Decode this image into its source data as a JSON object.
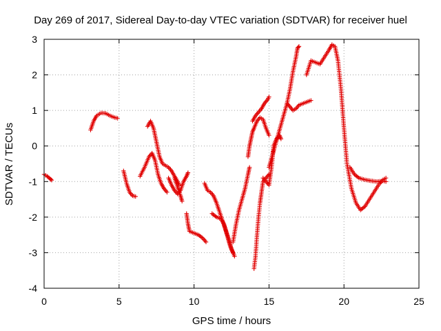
{
  "chart_data": {
    "type": "scatter",
    "title": "Day 269 of 2017, Sidereal Day-to-day VTEC variation (SDTVAR) for receiver huel",
    "xlabel": "GPS time / hours",
    "ylabel": "SDTVAR / TECUs",
    "xlim": [
      0,
      25
    ],
    "ylim": [
      -4,
      3
    ],
    "xticks": [
      0,
      5,
      10,
      15,
      20,
      25
    ],
    "yticks": [
      -4,
      -3,
      -2,
      -1,
      0,
      1,
      2,
      3
    ],
    "grid": true,
    "marker": "+",
    "color": "#e00000",
    "segments": [
      [
        [
          0.0,
          -0.8
        ],
        [
          0.2,
          -0.85
        ],
        [
          0.4,
          -0.92
        ],
        [
          0.5,
          -0.96
        ]
      ],
      [
        [
          3.1,
          0.45
        ],
        [
          3.3,
          0.7
        ],
        [
          3.5,
          0.85
        ],
        [
          3.8,
          0.93
        ],
        [
          4.1,
          0.92
        ],
        [
          4.4,
          0.85
        ],
        [
          4.7,
          0.8
        ],
        [
          4.9,
          0.78
        ]
      ],
      [
        [
          5.3,
          -0.7
        ],
        [
          5.5,
          -1.05
        ],
        [
          5.7,
          -1.3
        ],
        [
          5.9,
          -1.4
        ],
        [
          6.1,
          -1.42
        ]
      ],
      [
        [
          6.4,
          -0.85
        ],
        [
          6.7,
          -0.6
        ],
        [
          7.0,
          -0.3
        ],
        [
          7.2,
          -0.2
        ],
        [
          7.4,
          -0.4
        ],
        [
          7.6,
          -0.8
        ],
        [
          7.8,
          -1.05
        ],
        [
          8.0,
          -1.2
        ],
        [
          8.2,
          -1.3
        ]
      ],
      [
        [
          6.9,
          0.55
        ],
        [
          7.1,
          0.7
        ],
        [
          7.3,
          0.5
        ],
        [
          7.5,
          0.1
        ],
        [
          7.7,
          -0.3
        ],
        [
          7.9,
          -0.5
        ],
        [
          8.1,
          -0.55
        ],
        [
          8.3,
          -0.6
        ],
        [
          8.5,
          -0.7
        ],
        [
          8.7,
          -0.85
        ],
        [
          8.9,
          -1.0
        ],
        [
          9.0,
          -1.1
        ]
      ],
      [
        [
          8.3,
          -0.9
        ],
        [
          8.5,
          -1.1
        ],
        [
          8.7,
          -1.25
        ],
        [
          8.9,
          -1.35
        ],
        [
          9.1,
          -1.25
        ],
        [
          9.3,
          -1.0
        ],
        [
          9.5,
          -0.85
        ],
        [
          9.6,
          -0.75
        ]
      ],
      [
        [
          8.7,
          -0.9
        ],
        [
          8.9,
          -1.15
        ],
        [
          9.1,
          -1.4
        ],
        [
          9.2,
          -1.55
        ]
      ],
      [
        [
          9.5,
          -1.9
        ],
        [
          9.6,
          -2.2
        ],
        [
          9.7,
          -2.4
        ],
        [
          10.0,
          -2.45
        ],
        [
          10.3,
          -2.5
        ],
        [
          10.6,
          -2.6
        ],
        [
          10.8,
          -2.7
        ]
      ],
      [
        [
          10.7,
          -1.05
        ],
        [
          10.9,
          -1.25
        ],
        [
          11.1,
          -1.3
        ],
        [
          11.3,
          -1.4
        ],
        [
          11.5,
          -1.6
        ],
        [
          11.7,
          -1.85
        ],
        [
          11.9,
          -2.1
        ],
        [
          12.1,
          -2.35
        ],
        [
          12.3,
          -2.6
        ],
        [
          12.5,
          -2.9
        ],
        [
          12.7,
          -3.1
        ]
      ],
      [
        [
          11.2,
          -1.9
        ],
        [
          11.5,
          -2.0
        ],
        [
          11.8,
          -2.05
        ],
        [
          12.0,
          -2.2
        ],
        [
          12.2,
          -2.5
        ],
        [
          12.4,
          -2.8
        ],
        [
          12.6,
          -3.0
        ]
      ],
      [
        [
          12.6,
          -2.7
        ],
        [
          12.8,
          -2.2
        ],
        [
          13.0,
          -1.8
        ],
        [
          13.2,
          -1.5
        ],
        [
          13.4,
          -1.2
        ],
        [
          13.6,
          -0.8
        ],
        [
          13.7,
          -0.6
        ]
      ],
      [
        [
          13.6,
          -0.3
        ],
        [
          13.7,
          0.0
        ],
        [
          13.8,
          0.2
        ],
        [
          13.9,
          0.4
        ],
        [
          14.0,
          0.5
        ],
        [
          14.2,
          0.7
        ],
        [
          14.4,
          0.8
        ],
        [
          14.6,
          0.75
        ],
        [
          14.8,
          0.5
        ],
        [
          15.0,
          0.3
        ]
      ],
      [
        [
          13.9,
          0.7
        ],
        [
          14.1,
          0.85
        ],
        [
          14.3,
          0.95
        ],
        [
          14.5,
          1.05
        ],
        [
          14.7,
          1.2
        ],
        [
          14.9,
          1.3
        ],
        [
          15.0,
          1.38
        ]
      ],
      [
        [
          14.0,
          -3.45
        ],
        [
          14.1,
          -3.1
        ],
        [
          14.2,
          -2.5
        ],
        [
          14.3,
          -2.0
        ],
        [
          14.4,
          -1.6
        ],
        [
          14.5,
          -1.3
        ],
        [
          14.6,
          -1.0
        ],
        [
          14.8,
          -0.9
        ],
        [
          15.0,
          -0.8
        ]
      ],
      [
        [
          14.6,
          -0.9
        ],
        [
          14.8,
          -1.0
        ],
        [
          15.0,
          -1.1
        ],
        [
          15.2,
          -0.5
        ],
        [
          15.3,
          0.0
        ],
        [
          15.5,
          0.2
        ],
        [
          15.7,
          0.3
        ],
        [
          15.8,
          0.2
        ]
      ],
      [
        [
          15.0,
          -0.6
        ],
        [
          15.2,
          -0.3
        ],
        [
          15.4,
          0.0
        ],
        [
          15.6,
          0.3
        ],
        [
          15.8,
          0.6
        ],
        [
          16.0,
          0.9
        ],
        [
          16.2,
          1.2
        ],
        [
          16.4,
          1.6
        ],
        [
          16.6,
          2.1
        ],
        [
          16.8,
          2.5
        ],
        [
          16.9,
          2.75
        ],
        [
          17.0,
          2.8
        ]
      ],
      [
        [
          16.2,
          1.2
        ],
        [
          16.4,
          1.1
        ],
        [
          16.6,
          1.0
        ],
        [
          16.8,
          1.05
        ],
        [
          17.0,
          1.15
        ],
        [
          17.3,
          1.2
        ],
        [
          17.6,
          1.25
        ],
        [
          17.8,
          1.28
        ]
      ],
      [
        [
          17.5,
          2.0
        ],
        [
          17.8,
          2.4
        ],
        [
          18.1,
          2.35
        ],
        [
          18.4,
          2.3
        ],
        [
          18.7,
          2.5
        ],
        [
          19.0,
          2.7
        ],
        [
          19.2,
          2.85
        ],
        [
          19.4,
          2.8
        ],
        [
          19.6,
          2.4
        ],
        [
          19.8,
          1.6
        ],
        [
          20.0,
          0.5
        ],
        [
          20.2,
          -0.5
        ],
        [
          20.5,
          -1.2
        ],
        [
          20.8,
          -1.6
        ],
        [
          21.1,
          -1.8
        ],
        [
          21.4,
          -1.7
        ],
        [
          21.7,
          -1.5
        ],
        [
          22.0,
          -1.3
        ],
        [
          22.3,
          -1.1
        ],
        [
          22.6,
          -0.95
        ],
        [
          22.8,
          -0.9
        ]
      ],
      [
        [
          20.4,
          -0.6
        ],
        [
          20.7,
          -0.8
        ],
        [
          21.0,
          -0.9
        ],
        [
          21.4,
          -0.95
        ],
        [
          21.8,
          -0.98
        ],
        [
          22.2,
          -1.0
        ],
        [
          22.6,
          -0.98
        ],
        [
          22.8,
          -1.0
        ]
      ]
    ]
  }
}
